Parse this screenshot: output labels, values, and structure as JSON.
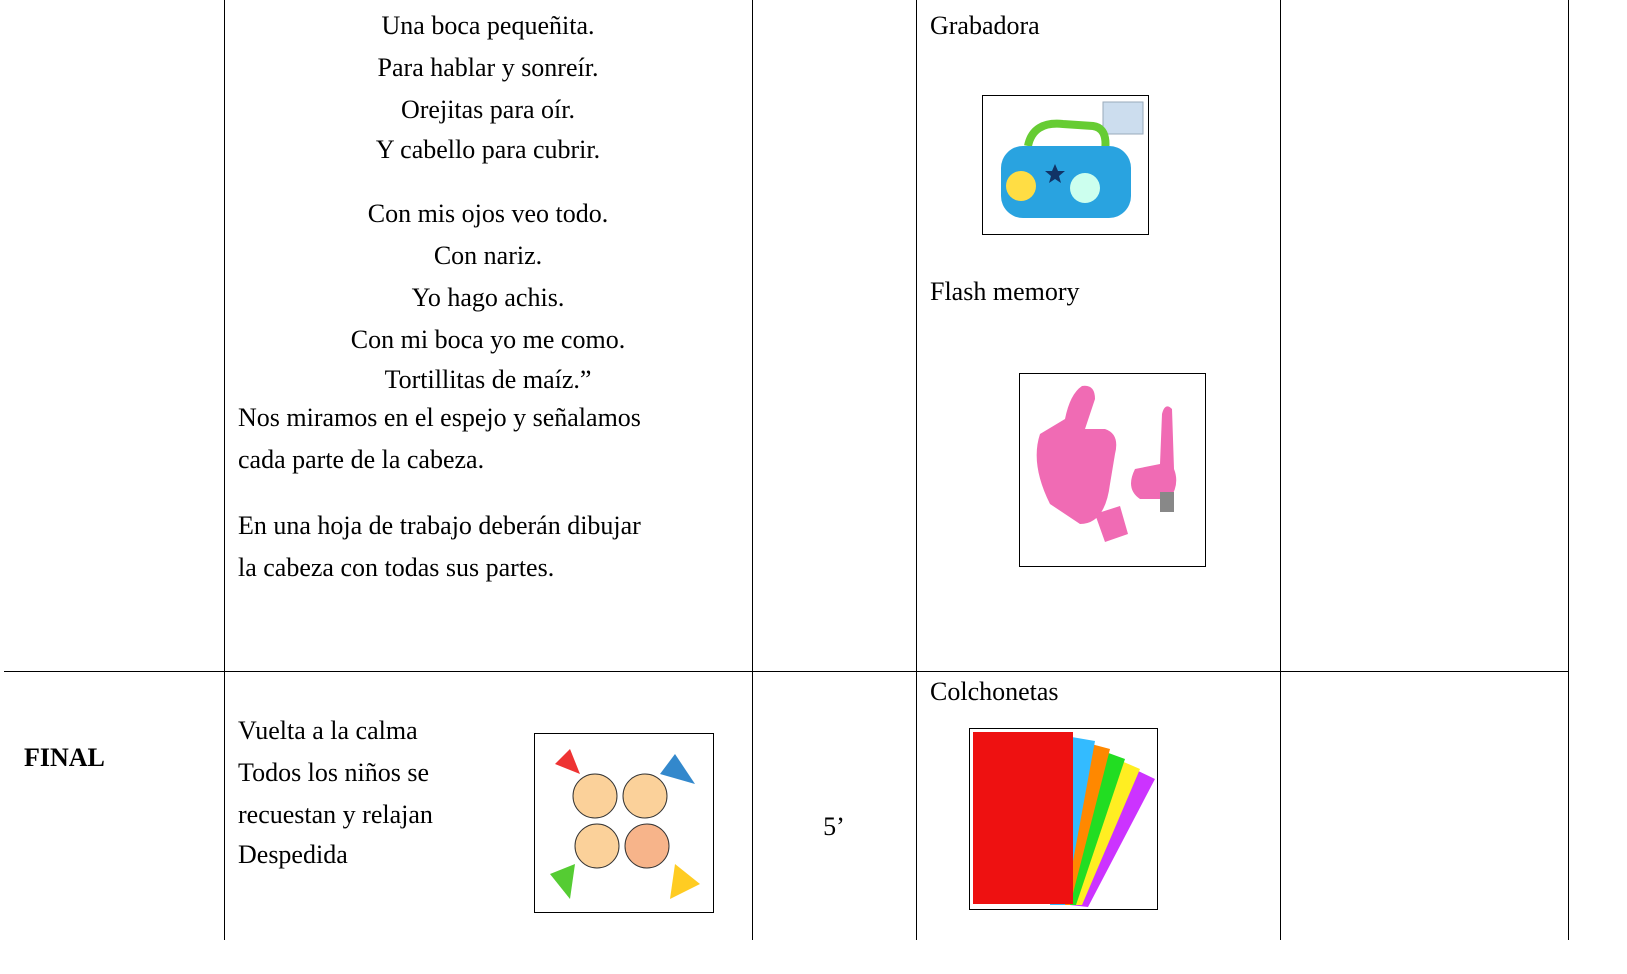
{
  "table": {
    "rows": [
      {
        "activity": {
          "verses": [
            [
              "Una boca pequeñita.",
              "Para hablar y sonreír.",
              "Orejitas para oír.",
              "Y cabello para cubrir."
            ],
            [
              "Con mis ojos veo todo.",
              "Con nariz.",
              "Yo hago achis.",
              "Con mi boca yo me como.",
              "Tortillitas de maíz.”"
            ]
          ],
          "paragraphs": [
            [
              "Nos miramos en el espejo y señalamos",
              "cada parte de la cabeza."
            ],
            [
              "En una hoja de trabajo deberán dibujar",
              "la cabeza con todas sus partes."
            ]
          ]
        },
        "resources": [
          "Grabadora",
          "Flash memory"
        ]
      },
      {
        "stage": "FINAL",
        "activity": [
          "Vuelta a la calma",
          "Todos los niños se",
          "recuestan y relajan",
          "Despedida"
        ],
        "time": "5’",
        "resources": [
          "Colchonetas"
        ]
      }
    ]
  }
}
